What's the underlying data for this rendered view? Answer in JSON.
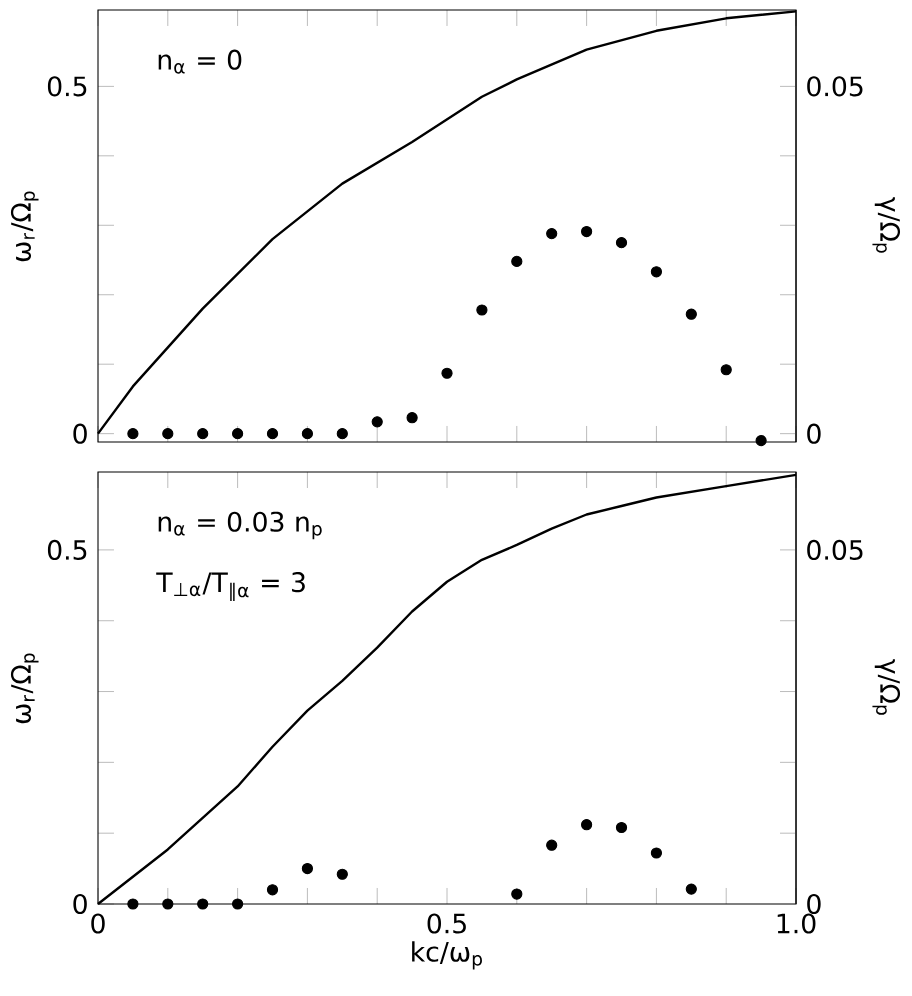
{
  "chart_data": [
    {
      "type": "line",
      "ylabel": "ω$_{r}$/Ω$_{p}$",
      "y2label": "γ/Ω$_{p}$",
      "annotations": [
        "n$_{α}$ = 0"
      ],
      "tick_labels": "y",
      "xlim": [
        0,
        1
      ],
      "ylim": [
        -0.012,
        0.61
      ],
      "y2lim": [
        -0.0012,
        0.061
      ],
      "xticks": [
        {
          "value": 0,
          "label": null
        },
        {
          "value": 0.1,
          "label": null
        },
        {
          "value": 0.2,
          "label": null
        },
        {
          "value": 0.3,
          "label": null
        },
        {
          "value": 0.4,
          "label": null
        },
        {
          "value": 0.5,
          "label": null
        },
        {
          "value": 0.6,
          "label": null
        },
        {
          "value": 0.7,
          "label": null
        },
        {
          "value": 0.8,
          "label": null
        },
        {
          "value": 0.9,
          "label": null
        },
        {
          "value": 1.0,
          "label": null
        }
      ],
      "yticks": [
        {
          "value": 0,
          "label": "0"
        },
        {
          "value": 0.1,
          "label": null
        },
        {
          "value": 0.2,
          "label": null
        },
        {
          "value": 0.3,
          "label": null
        },
        {
          "value": 0.4,
          "label": null
        },
        {
          "value": 0.5,
          "label": "0.5"
        }
      ],
      "y2ticks": [
        {
          "value": 0,
          "label": "0"
        },
        {
          "value": 0.01,
          "label": null
        },
        {
          "value": 0.02,
          "label": null
        },
        {
          "value": 0.03,
          "label": null
        },
        {
          "value": 0.04,
          "label": null
        },
        {
          "value": 0.05,
          "label": "0.05"
        }
      ],
      "series": [
        {
          "color": "#000000",
          "x": [
            0,
            0.05,
            0.15,
            0.25,
            0.35,
            0.45,
            0.55,
            0.6,
            0.7,
            0.8,
            0.9,
            1.0
          ],
          "values": [
            0,
            0.068,
            0.18,
            0.28,
            0.36,
            0.42,
            0.485,
            0.51,
            0.553,
            0.58,
            0.598,
            0.608
          ]
        },
        {
          "type": "scatter",
          "axis": "y2",
          "color": "#000000",
          "x": [
            0.05,
            0.1,
            0.15,
            0.2,
            0.25,
            0.3,
            0.35,
            0.4,
            0.45,
            0.5,
            0.55,
            0.6,
            0.65,
            0.7,
            0.75,
            0.8,
            0.85,
            0.9,
            0.95
          ],
          "values": [
            0,
            0,
            0,
            0,
            0,
            0,
            0,
            0.0017,
            0.0023,
            0.0087,
            0.0178,
            0.0248,
            0.0288,
            0.0291,
            0.0275,
            0.0233,
            0.0172,
            0.0092,
            -0.001
          ]
        }
      ]
    },
    {
      "type": "line",
      "xlabel": "kc/ω$_{p}$",
      "ylabel": "ω$_{r}$/Ω$_{p}$",
      "y2label": "γ/Ω$_{p}$",
      "annotations": [
        "n$_{α}$ = 0.03 n$_{p}$",
        "T$_{⊥α}$/T$_{∥α}$ = 3"
      ],
      "xlim": [
        0,
        1
      ],
      "ylim": [
        0,
        0.61
      ],
      "y2lim": [
        0,
        0.061
      ],
      "xticks": [
        {
          "value": 0,
          "label": "0"
        },
        {
          "value": 0.1,
          "label": null
        },
        {
          "value": 0.2,
          "label": null
        },
        {
          "value": 0.3,
          "label": null
        },
        {
          "value": 0.4,
          "label": null
        },
        {
          "value": 0.5,
          "label": "0.5"
        },
        {
          "value": 0.6,
          "label": null
        },
        {
          "value": 0.7,
          "label": null
        },
        {
          "value": 0.8,
          "label": null
        },
        {
          "value": 0.9,
          "label": null
        },
        {
          "value": 1.0,
          "label": "1.0"
        }
      ],
      "yticks": [
        {
          "value": 0,
          "label": "0"
        },
        {
          "value": 0.1,
          "label": null
        },
        {
          "value": 0.2,
          "label": null
        },
        {
          "value": 0.3,
          "label": null
        },
        {
          "value": 0.4,
          "label": null
        },
        {
          "value": 0.5,
          "label": "0.5"
        }
      ],
      "y2ticks": [
        {
          "value": 0,
          "label": "0"
        },
        {
          "value": 0.01,
          "label": null
        },
        {
          "value": 0.02,
          "label": null
        },
        {
          "value": 0.03,
          "label": null
        },
        {
          "value": 0.04,
          "label": null
        },
        {
          "value": 0.05,
          "label": "0.05"
        }
      ],
      "series": [
        {
          "color": "#000000",
          "x": [
            0,
            0.1,
            0.2,
            0.25,
            0.3,
            0.35,
            0.4,
            0.45,
            0.5,
            0.55,
            0.6,
            0.65,
            0.7,
            0.75,
            0.8,
            0.9,
            1.0
          ],
          "values": [
            0,
            0.077,
            0.166,
            0.222,
            0.273,
            0.315,
            0.362,
            0.413,
            0.455,
            0.486,
            0.507,
            0.53,
            0.55,
            0.562,
            0.574,
            0.59,
            0.606
          ]
        },
        {
          "type": "scatter",
          "axis": "y2",
          "color": "#000000",
          "x": [
            0.05,
            0.1,
            0.15,
            0.2,
            0.25,
            0.3,
            0.35,
            0.6,
            0.65,
            0.7,
            0.75,
            0.8,
            0.85
          ],
          "values": [
            0,
            0,
            0,
            0,
            0.002,
            0.005,
            0.0042,
            0.0014,
            0.0083,
            0.0112,
            0.0108,
            0.0072,
            0.0021
          ]
        }
      ]
    }
  ]
}
